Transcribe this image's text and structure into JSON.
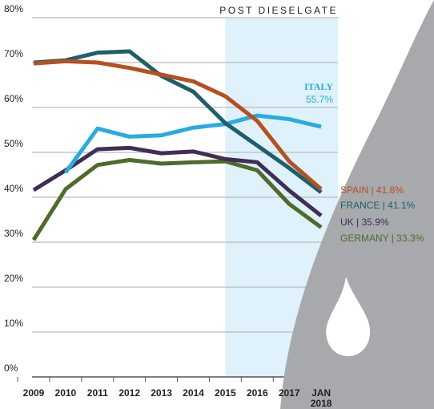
{
  "chart_data": {
    "type": "line",
    "categories": [
      "2009",
      "2010",
      "2011",
      "2012",
      "2013",
      "2014",
      "2015",
      "2016",
      "2017",
      "JAN 2018"
    ],
    "ylim": [
      0,
      80
    ],
    "yticks": [
      {
        "value": 0,
        "label": "0%"
      },
      {
        "value": 10,
        "label": "10%"
      },
      {
        "value": 20,
        "label": "20%"
      },
      {
        "value": 30,
        "label": "30%"
      },
      {
        "value": 40,
        "label": "40%"
      },
      {
        "value": 50,
        "label": "50%"
      },
      {
        "value": 60,
        "label": "60%"
      },
      {
        "value": 70,
        "label": "70%"
      },
      {
        "value": 80,
        "label": "80%"
      }
    ],
    "grid": true,
    "highlight": {
      "from": "2015",
      "label": "POST DIESELGATE",
      "color": "#dff1fb"
    },
    "label_separator": " | ",
    "series": [
      {
        "name": "SPAIN",
        "color": "#b5501f",
        "values": [
          69.8,
          70.3,
          70.0,
          68.8,
          67.3,
          65.8,
          62.5,
          57,
          48,
          41.8
        ],
        "value_label": "41.8%"
      },
      {
        "name": "FRANCE",
        "color": "#1f5f6b",
        "values": [
          70,
          70.5,
          72.2,
          72.5,
          67,
          63.5,
          56.5,
          51.5,
          46.5,
          41.1
        ],
        "value_label": "41.1%"
      },
      {
        "name": "ITALY",
        "color": "#29abe2",
        "values": [
          null,
          45.5,
          55.3,
          53.5,
          53.8,
          55.5,
          56.3,
          58.2,
          57.4,
          55.7
        ],
        "value_label": "55.7%"
      },
      {
        "name": "UK",
        "color": "#3f2e56",
        "values": [
          41.6,
          46,
          50.7,
          51,
          49.8,
          50.2,
          48.5,
          47.8,
          41.5,
          35.9
        ],
        "value_label": "35.9%"
      },
      {
        "name": "GERMANY",
        "color": "#4f6b2a",
        "values": [
          30.5,
          41.8,
          47.2,
          48.3,
          47.5,
          47.8,
          48,
          46,
          38.5,
          33.3
        ],
        "value_label": "33.3%"
      }
    ]
  }
}
